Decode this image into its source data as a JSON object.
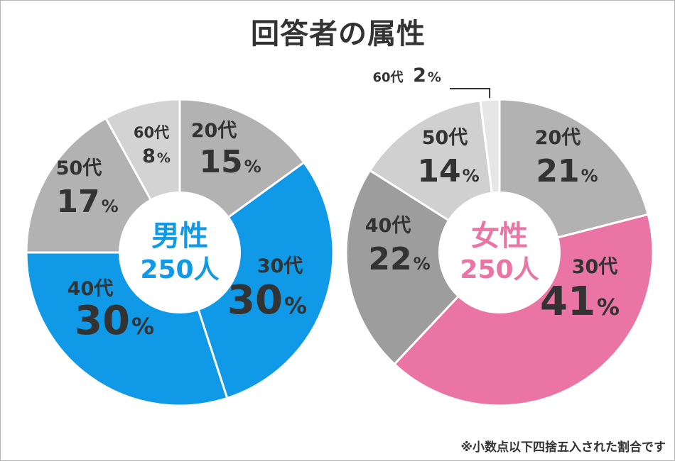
{
  "title": "回答者の属性",
  "footnote": "※小数点以下四捨五入された割合です",
  "colors": {
    "text": "#333333",
    "male_accent": "#0f99e6",
    "female_accent": "#ea75a4"
  },
  "chart_data": [
    {
      "type": "pie",
      "center_label": "男性",
      "center_count": "250人",
      "unit": "%",
      "slices": [
        {
          "label": "20代",
          "value": 15,
          "color": "#b2b2b2"
        },
        {
          "label": "30代",
          "value": 30,
          "color": "#0f99e6"
        },
        {
          "label": "40代",
          "value": 30,
          "color": "#0f99e6"
        },
        {
          "label": "50代",
          "value": 17,
          "color": "#b2b2b2"
        },
        {
          "label": "60代",
          "value": 8,
          "color": "#d3d3d3"
        }
      ]
    },
    {
      "type": "pie",
      "center_label": "女性",
      "center_count": "250人",
      "unit": "%",
      "slices": [
        {
          "label": "20代",
          "value": 21,
          "color": "#b2b2b2"
        },
        {
          "label": "30代",
          "value": 41,
          "color": "#ea75a4"
        },
        {
          "label": "40代",
          "value": 22,
          "color": "#9d9d9d"
        },
        {
          "label": "50代",
          "value": 14,
          "color": "#d0d0d0"
        },
        {
          "label": "60代",
          "value": 2,
          "color": "#e6e6e6"
        }
      ]
    }
  ]
}
